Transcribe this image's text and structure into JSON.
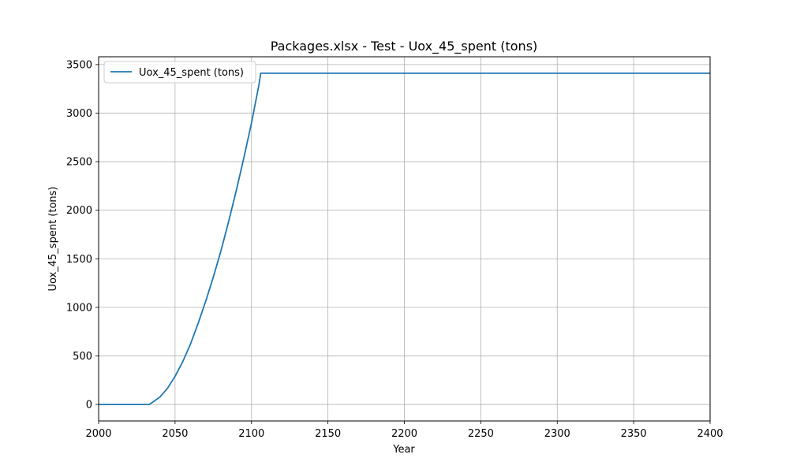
{
  "chart_data": {
    "type": "line",
    "title": "Packages.xlsx - Test - Uox_45_spent (tons)",
    "xlabel": "Year",
    "ylabel": "Uox_45_spent (tons)",
    "xlim": [
      2000,
      2400
    ],
    "ylim": [
      -170,
      3580
    ],
    "xticks": [
      2000,
      2050,
      2100,
      2150,
      2200,
      2250,
      2300,
      2350,
      2400
    ],
    "yticks": [
      0,
      500,
      1000,
      1500,
      2000,
      2500,
      3000,
      3500
    ],
    "grid": true,
    "legend_position": "top-left",
    "series": [
      {
        "name": "Uox_45_spent (tons)",
        "color": "#1f77b4",
        "x": [
          2000,
          2033,
          2035,
          2040,
          2045,
          2050,
          2055,
          2060,
          2065,
          2070,
          2075,
          2080,
          2085,
          2090,
          2095,
          2100,
          2105,
          2106,
          2150,
          2200,
          2250,
          2300,
          2350,
          2400
        ],
        "y": [
          0,
          0,
          20,
          75,
          165,
          290,
          440,
          620,
          830,
          1060,
          1310,
          1580,
          1880,
          2200,
          2540,
          2900,
          3300,
          3410,
          3410,
          3410,
          3410,
          3410,
          3410,
          3410
        ]
      }
    ]
  }
}
